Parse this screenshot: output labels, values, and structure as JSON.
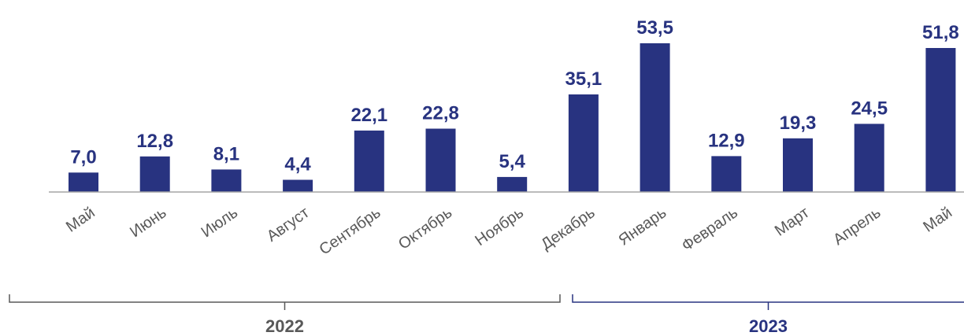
{
  "chart_data": {
    "type": "bar",
    "categories": [
      "Май",
      "Июнь",
      "Июль",
      "Август",
      "Сентябрь",
      "Октябрь",
      "Ноябрь",
      "Декабрь",
      "Январь",
      "Февраль",
      "Март",
      "Апрель",
      "Май"
    ],
    "values": [
      7.0,
      12.8,
      8.1,
      4.4,
      22.1,
      22.8,
      5.4,
      35.1,
      53.5,
      12.9,
      19.3,
      24.5,
      51.8
    ],
    "value_labels": [
      "7,0",
      "12,8",
      "8,1",
      "4,4",
      "22,1",
      "22,8",
      "5,4",
      "35,1",
      "53,5",
      "12,9",
      "19,3",
      "24,5",
      "51,8"
    ],
    "ylim": [
      0,
      53.5
    ],
    "grid": false,
    "legend": "none",
    "groups": [
      {
        "label": "2022",
        "categories": [
          "Май",
          "Июнь",
          "Июль",
          "Август",
          "Сентябрь",
          "Октябрь",
          "Ноябрь",
          "Декабрь"
        ]
      },
      {
        "label": "2023",
        "categories": [
          "Январь",
          "Февраль",
          "Март",
          "Апрель",
          "Май"
        ]
      }
    ],
    "colors": {
      "bar": "#283380",
      "axis": "#a6a6a6",
      "bracket_2022": "#595959",
      "bracket_2023": "#283380",
      "tick_text": "#595959"
    }
  }
}
